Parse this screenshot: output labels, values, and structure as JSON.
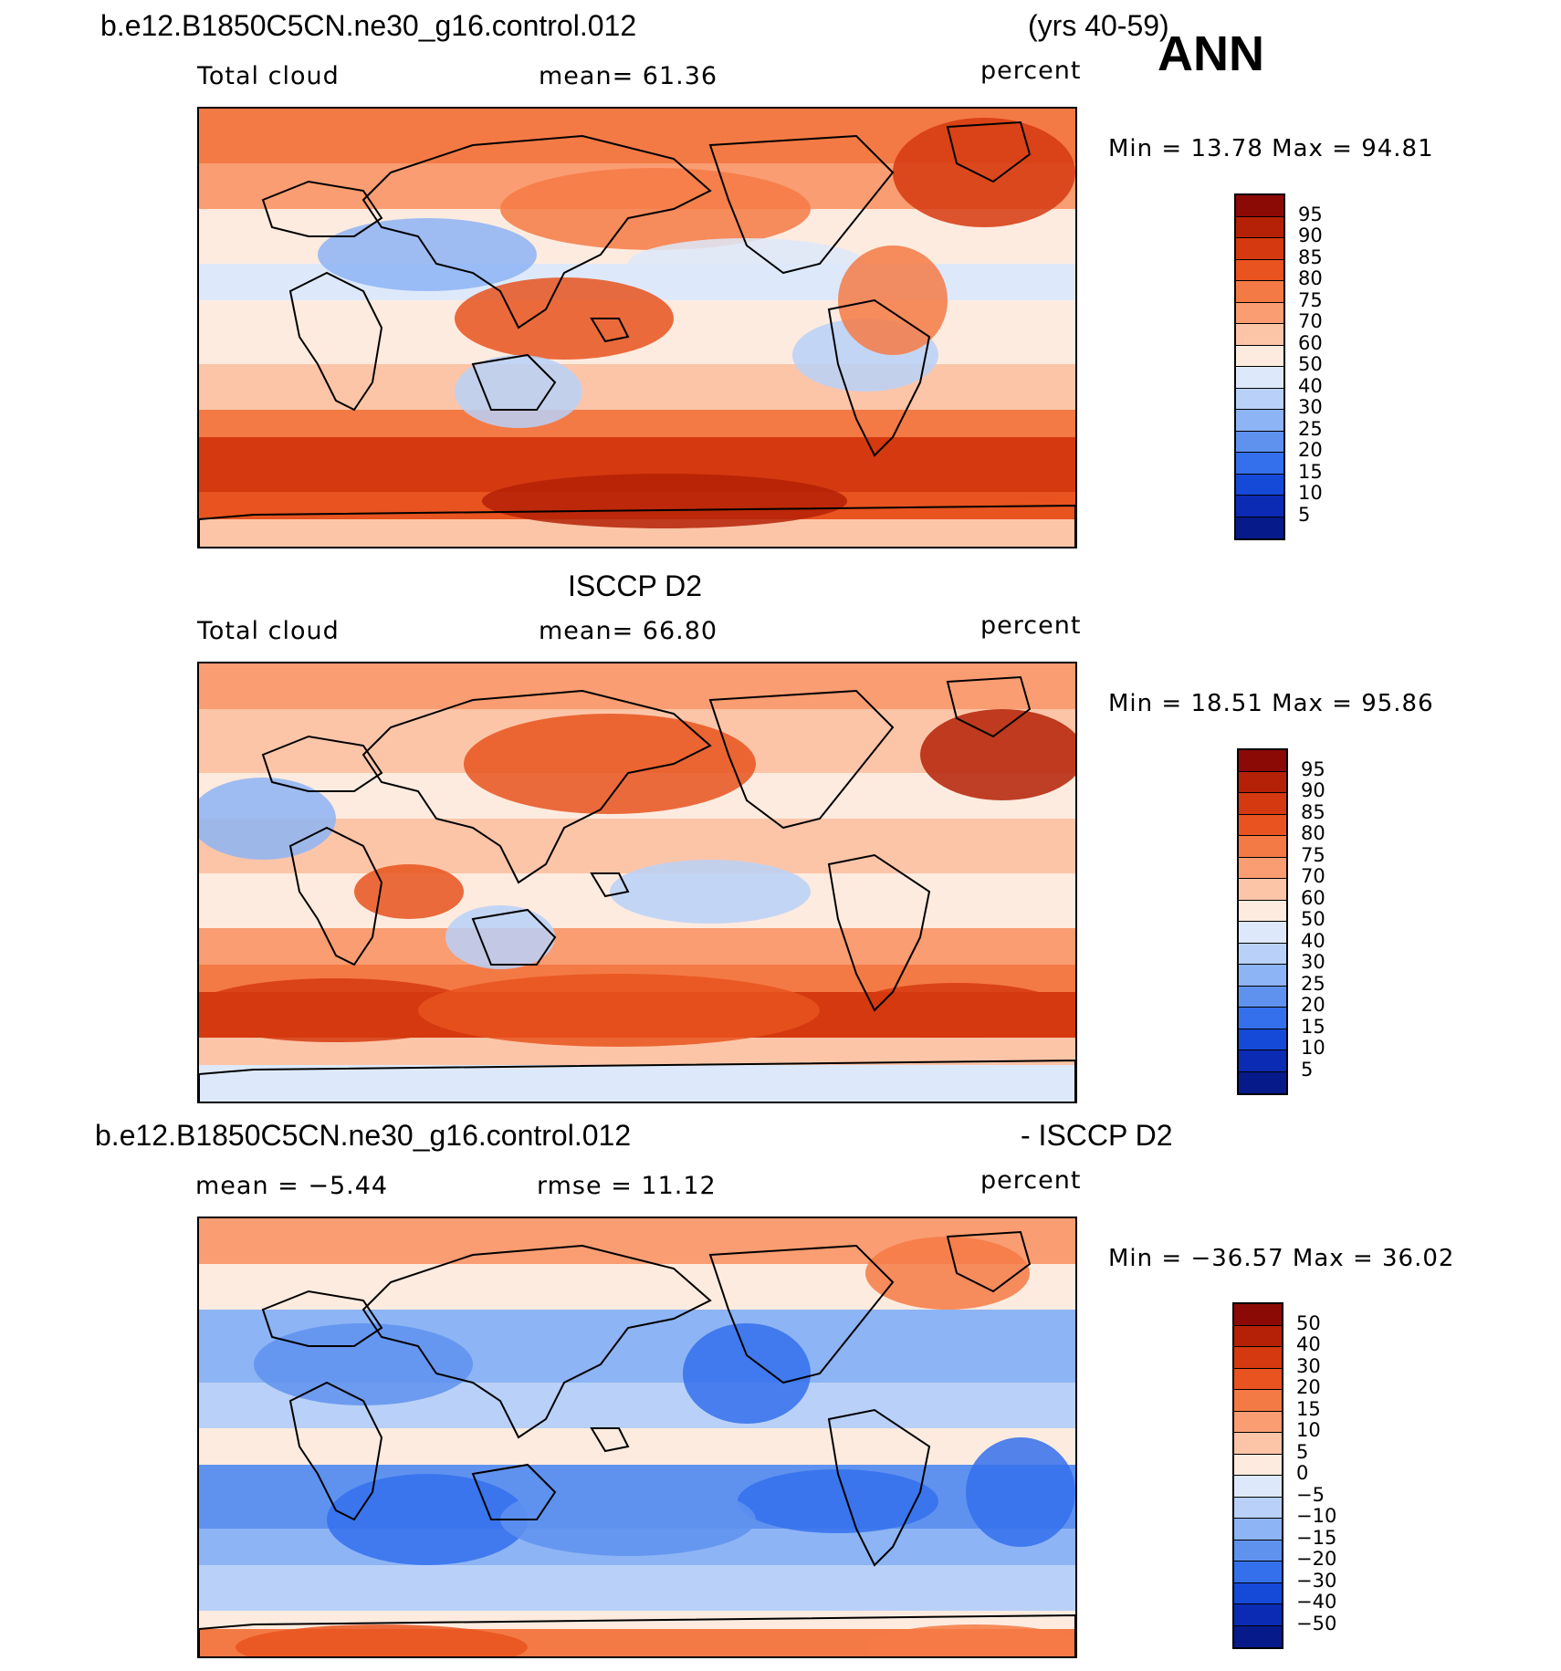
{
  "header": {
    "case_name": "b.e12.B1850C5CN.ne30_g16.control.012",
    "years": "(yrs 40-59)",
    "season": "ANN"
  },
  "panels": [
    {
      "id": "model",
      "left_label": "Total cloud",
      "center_label": "mean=   61.36",
      "right_label": "percent",
      "minmax": "Min =   13.78 Max =   94.81",
      "colorbar_ticks": [
        "95",
        "90",
        "85",
        "80",
        "75",
        "70",
        "60",
        "50",
        "40",
        "30",
        "25",
        "20",
        "15",
        "10",
        "5"
      ]
    },
    {
      "id": "obs",
      "title": "ISCCP D2",
      "left_label": "Total cloud",
      "center_label": "mean=   66.80",
      "right_label": "percent",
      "minmax": "Min =   18.51 Max =   95.86",
      "colorbar_ticks": [
        "95",
        "90",
        "85",
        "80",
        "75",
        "70",
        "60",
        "50",
        "40",
        "30",
        "25",
        "20",
        "15",
        "10",
        "5"
      ]
    },
    {
      "id": "diff",
      "title_left": "b.e12.B1850C5CN.ne30_g16.control.012",
      "title_right": "- ISCCP D2",
      "left_label": "mean =   −5.44",
      "center_label": "rmse =   11.12",
      "right_label": "percent",
      "minmax": "Min = −36.57 Max =   36.02",
      "colorbar_ticks": [
        "50",
        "40",
        "30",
        "20",
        "15",
        "10",
        "5",
        "0",
        "−5",
        "−10",
        "−15",
        "−20",
        "−30",
        "−40",
        "−50"
      ]
    }
  ],
  "colorbar_colors": [
    "#8b0a06",
    "#b42106",
    "#d5390f",
    "#e8531f",
    "#f47a45",
    "#fa9d72",
    "#fdc5a8",
    "#fdebdf",
    "#dde9fa",
    "#b9d1f8",
    "#8db4f4",
    "#5f92ef",
    "#3470ec",
    "#1549d8",
    "#0b2bb4",
    "#061a8a"
  ]
}
